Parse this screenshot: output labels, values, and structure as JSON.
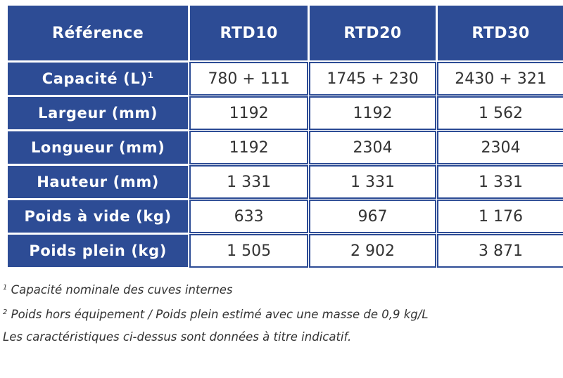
{
  "table": {
    "header": [
      "Référence",
      "RTD10",
      "RTD20",
      "RTD30"
    ],
    "rows": [
      {
        "label": "Capacité (L)",
        "sup": "1",
        "values": [
          "780 + 111",
          "1745 + 230",
          "2430 + 321"
        ]
      },
      {
        "label": "Largeur (mm)",
        "sup": "",
        "values": [
          "1192",
          "1192",
          "1 562"
        ]
      },
      {
        "label": "Longueur (mm)",
        "sup": "",
        "values": [
          "1192",
          "2304",
          "2304"
        ]
      },
      {
        "label": "Hauteur (mm)",
        "sup": "",
        "values": [
          "1 331",
          "1 331",
          "1 331"
        ]
      },
      {
        "label": "Poids à vide (kg)",
        "sup": "",
        "values": [
          "633",
          "967",
          "1 176"
        ]
      },
      {
        "label": "Poids plein (kg)",
        "sup": "",
        "values": [
          "1 505",
          "2 902",
          "3 871"
        ]
      }
    ]
  },
  "notes": {
    "note1_marker": "1",
    "note1_text": "Capacité nominale des cuves internes",
    "note2_marker": "2",
    "note2_text": "Poids hors équipement / Poids plein estimé avec une masse de 0,9 kg/L",
    "disclaimer": "Les caractéristiques ci-dessus sont données à titre indicatif."
  },
  "colors": {
    "header_blue": "#2d4c95",
    "text": "#333333"
  }
}
